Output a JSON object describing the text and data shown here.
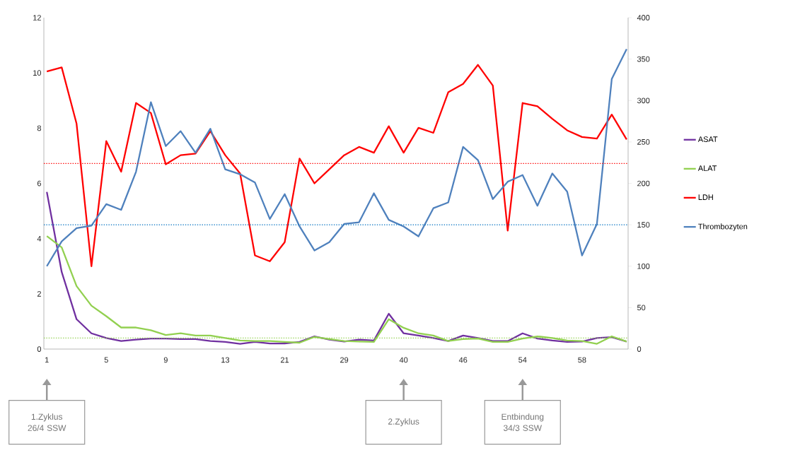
{
  "chart_data": {
    "type": "line",
    "categories": [
      "1",
      null,
      null,
      null,
      "5",
      null,
      null,
      null,
      "9",
      null,
      null,
      null,
      "13",
      null,
      null,
      null,
      "21",
      null,
      null,
      null,
      "29",
      null,
      null,
      null,
      "40",
      null,
      null,
      null,
      "46",
      null,
      null,
      null,
      "54",
      null,
      null,
      null,
      "58",
      null,
      null,
      null
    ],
    "series": [
      {
        "name": "ASAT",
        "color": "#7030a0",
        "values": [
          5.69,
          2.79,
          1.08,
          0.57,
          0.4,
          0.29,
          0.34,
          0.38,
          0.38,
          0.36,
          0.36,
          0.29,
          0.26,
          0.19,
          0.26,
          0.2,
          0.2,
          0.26,
          0.46,
          0.34,
          0.27,
          0.34,
          0.31,
          1.28,
          0.57,
          0.49,
          0.4,
          0.29,
          0.49,
          0.4,
          0.29,
          0.29,
          0.57,
          0.38,
          0.31,
          0.26,
          0.27,
          0.4,
          0.43,
          0.27
        ]
      },
      {
        "name": "ALAT",
        "color": "#92d050",
        "values": [
          4.09,
          3.68,
          2.28,
          1.57,
          1.19,
          0.78,
          0.78,
          0.68,
          0.51,
          0.57,
          0.49,
          0.49,
          0.4,
          0.31,
          0.29,
          0.29,
          0.26,
          0.23,
          0.44,
          0.36,
          0.29,
          0.27,
          0.26,
          1.08,
          0.77,
          0.57,
          0.49,
          0.29,
          0.36,
          0.38,
          0.26,
          0.26,
          0.38,
          0.46,
          0.4,
          0.31,
          0.29,
          0.19,
          0.46,
          0.27
        ]
      },
      {
        "name": "LDH",
        "color": "#ff0000",
        "axis": "y2",
        "values": [
          335,
          340,
          272,
          100,
          251,
          214,
          297,
          285,
          223,
          234,
          236,
          263,
          234,
          212,
          113,
          106,
          129,
          230,
          200,
          217,
          234,
          244,
          237,
          269,
          237,
          267,
          261,
          310,
          320,
          343,
          318,
          143,
          297,
          293,
          278,
          264,
          256,
          254,
          283,
          253
        ]
      },
      {
        "name": "Thrombozyten",
        "color": "#4f81bd",
        "axis": "y2",
        "values": [
          100,
          130,
          146,
          149,
          175,
          168,
          214,
          298,
          245,
          263,
          237,
          266,
          217,
          211,
          201,
          157,
          187,
          148,
          119,
          129,
          151,
          153,
          188,
          156,
          148,
          136,
          170,
          177,
          244,
          228,
          181,
          202,
          210,
          173,
          212,
          190,
          113,
          151,
          326,
          362
        ]
      }
    ],
    "ylim": [
      0,
      12
    ],
    "yticks": [
      0,
      2,
      4,
      6,
      8,
      10,
      12
    ],
    "y2lim": [
      0,
      400
    ],
    "y2ticks": [
      0,
      50,
      100,
      150,
      200,
      250,
      300,
      350,
      400
    ],
    "ref_lines": [
      {
        "axis": "y2",
        "value": 224,
        "color": "#ff0000",
        "line_style": "dotted"
      },
      {
        "axis": "y2",
        "value": 150,
        "color": "#0070c0",
        "line_style": "dotted"
      },
      {
        "axis": "y",
        "value": 0.4,
        "color": "#92d050",
        "line_style": "dotted"
      }
    ],
    "annotations": [
      "1.Zyklus 26/4 SSW",
      "2.Zyklus",
      "Entbindung 34/3 SSW"
    ],
    "legend": "right",
    "grid": false,
    "marker": "none",
    "line_style": "solid"
  }
}
